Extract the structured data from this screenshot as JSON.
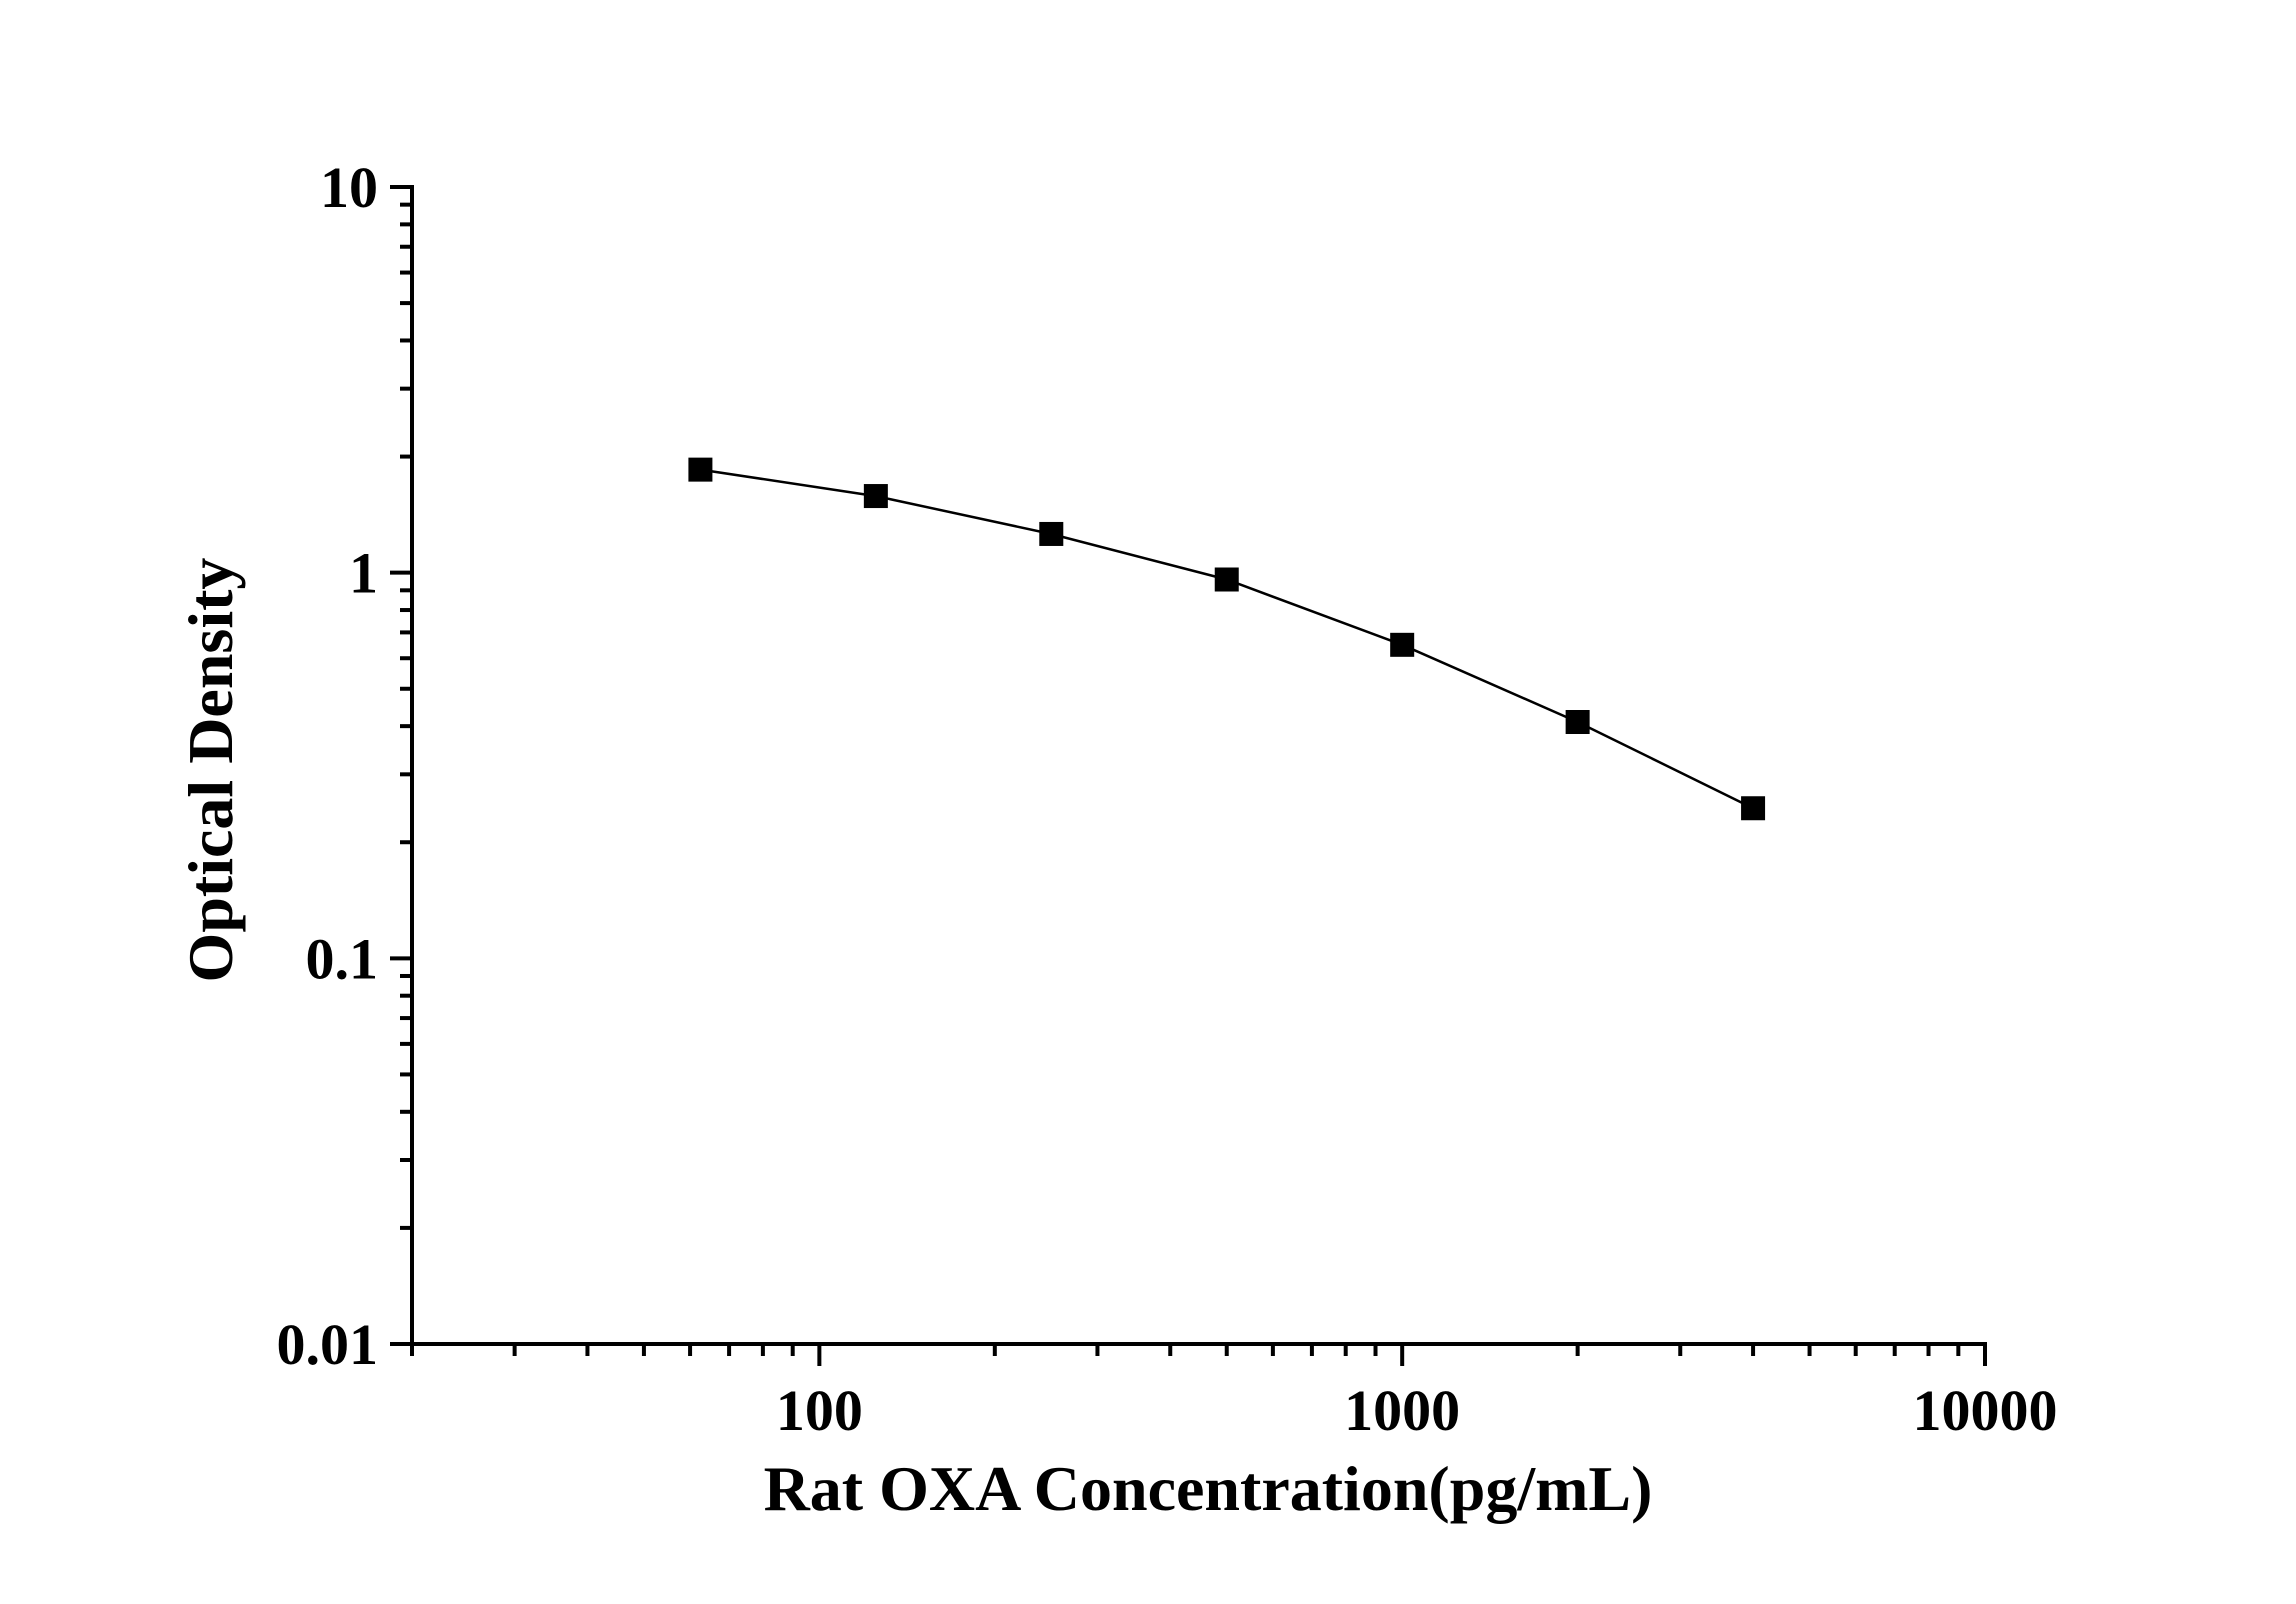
{
  "chart_data": {
    "type": "line",
    "title": "",
    "xlabel": "Rat OXA Concentration(pg/mL)",
    "ylabel": "Optical Density",
    "x_scale": "log",
    "y_scale": "log",
    "xlim": [
      20,
      10000
    ],
    "ylim": [
      0.01,
      10
    ],
    "x_ticks": [
      {
        "value": 100,
        "label": "100"
      },
      {
        "value": 1000,
        "label": "1000"
      },
      {
        "value": 10000,
        "label": "10000"
      }
    ],
    "y_ticks": [
      {
        "value": 10,
        "label": "10"
      },
      {
        "value": 1,
        "label": "1"
      },
      {
        "value": 0.1,
        "label": "0.1"
      },
      {
        "value": 0.01,
        "label": "0.01"
      }
    ],
    "grid": false,
    "legend": "none",
    "series": [
      {
        "marker": "square",
        "color": "#000000",
        "points": [
          {
            "x": 62.5,
            "y": 1.85
          },
          {
            "x": 125,
            "y": 1.58
          },
          {
            "x": 250,
            "y": 1.26
          },
          {
            "x": 500,
            "y": 0.96
          },
          {
            "x": 1000,
            "y": 0.65
          },
          {
            "x": 2000,
            "y": 0.41
          },
          {
            "x": 4000,
            "y": 0.245
          }
        ]
      }
    ]
  }
}
